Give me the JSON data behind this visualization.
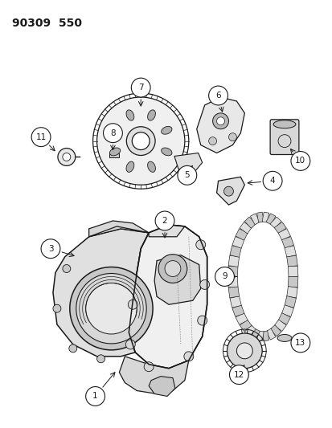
{
  "title": "90309  550",
  "bg_color": "#ffffff",
  "fig_width": 4.14,
  "fig_height": 5.33,
  "dpi": 100,
  "line_color": "#1a1a1a",
  "gray_fill": "#d8d8d8",
  "light_fill": "#f0f0f0",
  "mid_fill": "#c0c0c0"
}
